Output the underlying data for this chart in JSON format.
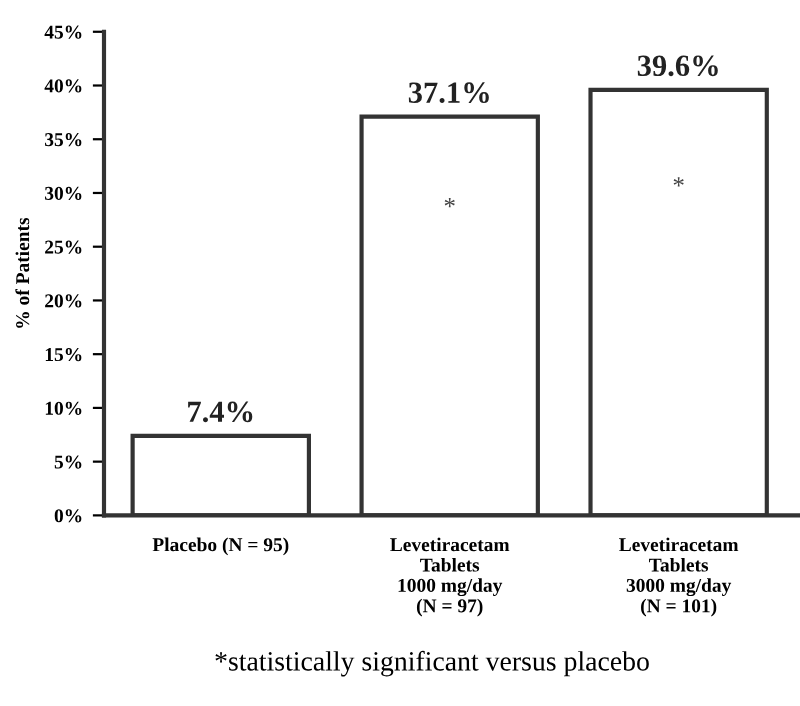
{
  "chart_data": {
    "type": "bar",
    "ylabel": "% of Patients",
    "categories": [
      "Placebo (N = 95)",
      "Levetiracetam\nTablets\n1000 mg/day\n(N = 97)",
      "Levetiracetam\nTablets\n3000 mg/day\n(N = 101)"
    ],
    "values": [
      7.4,
      37.1,
      39.6
    ],
    "color": "#ffffff",
    "value_labels": [
      "7.4%",
      "37.1%",
      "39.6%"
    ],
    "ylim": [
      0,
      45
    ],
    "yticks": [
      {
        "value": 0,
        "label": "0%"
      },
      {
        "value": 5,
        "label": "5%"
      },
      {
        "value": 10,
        "label": "10%"
      },
      {
        "value": 15,
        "label": "15%"
      },
      {
        "value": 20,
        "label": "20%"
      },
      {
        "value": 25,
        "label": "25%"
      },
      {
        "value": 30,
        "label": "30%"
      },
      {
        "value": 35,
        "label": "35%"
      },
      {
        "value": 40,
        "label": "40%"
      },
      {
        "value": 45,
        "label": "45%"
      }
    ],
    "annotations": [
      "*",
      "*",
      "*statistically significant versus placebo"
    ],
    "grid": false,
    "legend": false
  }
}
